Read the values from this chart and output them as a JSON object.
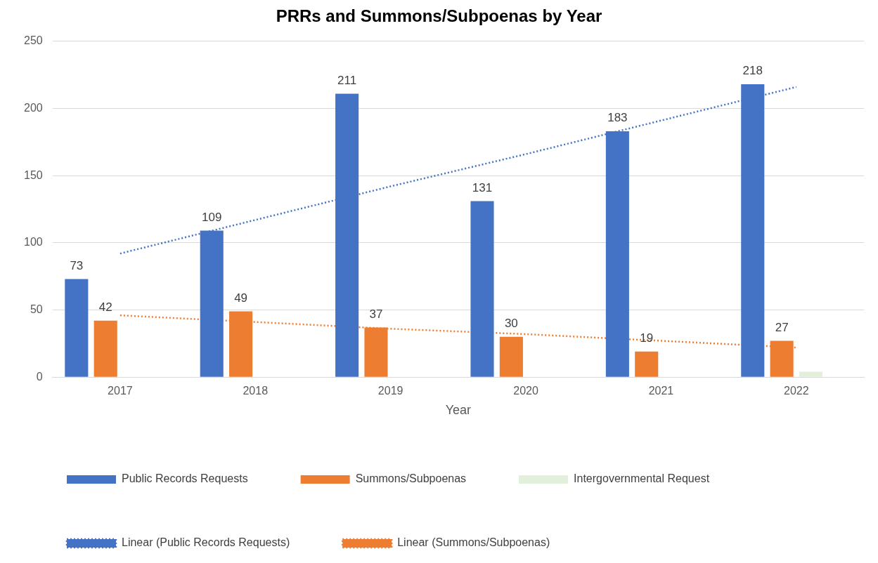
{
  "chart_data": {
    "type": "bar",
    "title": "PRRs and Summons/Subpoenas by Year",
    "xlabel": "Year",
    "categories": [
      "2017",
      "2018",
      "2019",
      "2020",
      "2021",
      "2022"
    ],
    "series": [
      {
        "name": "Public Records Requests",
        "color": "#4472c4",
        "values": [
          73,
          109,
          211,
          131,
          183,
          218
        ],
        "value_labels": [
          "73",
          "109",
          "211",
          "131",
          "183",
          "218"
        ]
      },
      {
        "name": "Summons/Subpoenas",
        "color": "#ed7d31",
        "values": [
          42,
          49,
          37,
          30,
          19,
          27
        ],
        "value_labels": [
          "42",
          "49",
          "37",
          "30",
          "19",
          "27"
        ]
      },
      {
        "name": "Intergovernmental Request",
        "color": "#e2efda",
        "values": [
          null,
          null,
          null,
          null,
          null,
          4
        ]
      },
      {
        "name": "Linear (Public Records Requests)",
        "type": "line",
        "color": "#4472c4",
        "values": [
          92,
          117,
          142,
          166,
          191,
          216
        ],
        "line_style": "dotted",
        "marker": "none"
      },
      {
        "name": "Linear (Summons/Subpoenas)",
        "type": "line",
        "color": "#ed7d31",
        "values": [
          46,
          41,
          36,
          32,
          27,
          22
        ],
        "line_style": "dotted",
        "marker": "none"
      }
    ],
    "ylim": [
      0,
      250
    ],
    "yticks": [
      0,
      50,
      100,
      150,
      200,
      250
    ],
    "grid": "y",
    "legend": "bottom"
  }
}
